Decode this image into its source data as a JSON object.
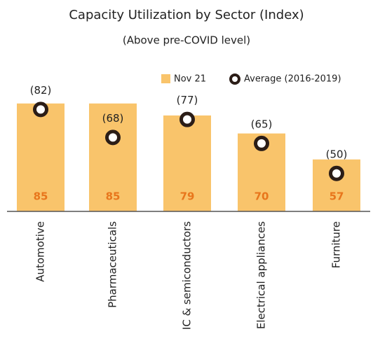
{
  "chart_data": {
    "type": "bar",
    "title": "Capacity Utilization by Sector (Index)",
    "subtitle": "(Above pre-COVID level)",
    "categories": [
      "Automotive",
      "Pharmaceuticals",
      "IC & semiconductors",
      "Electrical appliances",
      "Furniture"
    ],
    "series": [
      {
        "name": "Nov 21",
        "color": "#f9c46b",
        "values": [
          85,
          85,
          79,
          70,
          57
        ]
      },
      {
        "name": "Average (2016-2019)",
        "color": "#2b1d17",
        "values": [
          82,
          68,
          77,
          65,
          50
        ],
        "value_labels": [
          "(82)",
          "(68)",
          "(77)",
          "(65)",
          "(50)"
        ]
      }
    ],
    "ylim": [
      31,
      100
    ]
  }
}
